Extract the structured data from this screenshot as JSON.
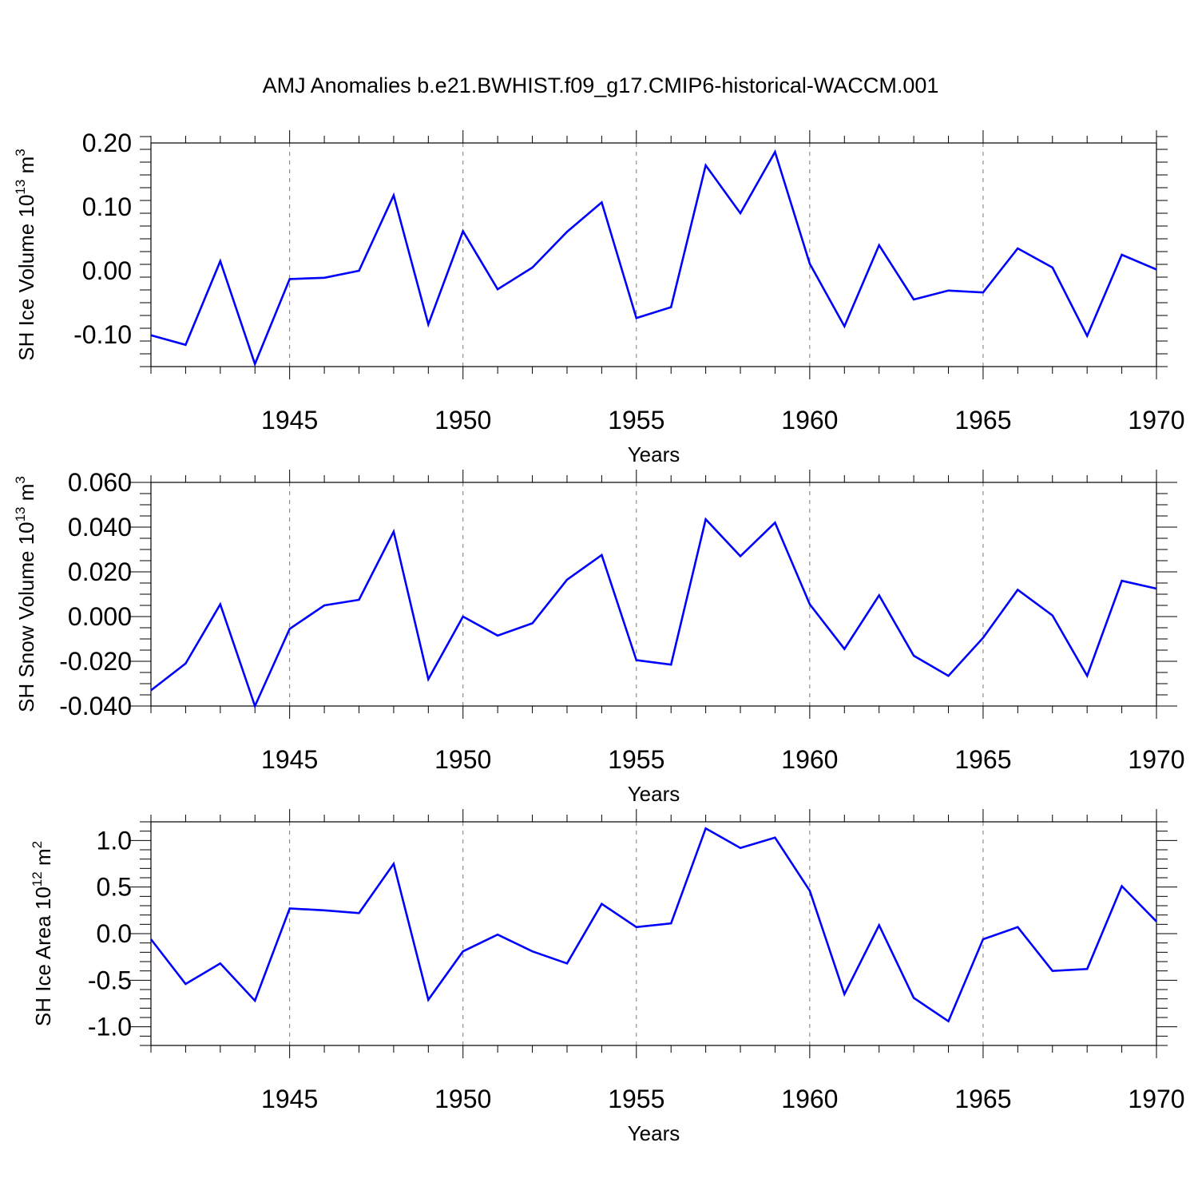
{
  "title": "AMJ Anomalies b.e21.BWHIST.f09_g17.CMIP6-historical-WACCM.001",
  "line_color": "#0000ff",
  "chart_data": [
    {
      "type": "line",
      "xlabel": "Years",
      "ylabel": {
        "base": "SH Ice Volume 10",
        "exp": "13",
        "unit": " m",
        "unit_exp": "3"
      },
      "xlim": [
        1941,
        1970
      ],
      "ylim": [
        -0.15,
        0.2
      ],
      "yticks": [
        -0.1,
        0.0,
        0.1,
        0.2
      ],
      "ytick_labels": [
        "-0.10",
        "0.00",
        "0.10",
        "0.20"
      ],
      "yminor_step": 0.02,
      "xticks": [
        1945,
        1950,
        1955,
        1960,
        1965,
        1970
      ],
      "xtick_labels": [
        "1945",
        "1950",
        "1955",
        "1960",
        "1965",
        "1970"
      ],
      "grid": "dashed vertical at major x ticks",
      "x": [
        1941,
        1942,
        1943,
        1944,
        1945,
        1946,
        1947,
        1948,
        1949,
        1950,
        1951,
        1952,
        1953,
        1954,
        1955,
        1956,
        1957,
        1958,
        1959,
        1960,
        1961,
        1962,
        1963,
        1964,
        1965,
        1966,
        1967,
        1968,
        1969,
        1970
      ],
      "values": [
        -0.101,
        -0.116,
        0.015,
        -0.146,
        -0.013,
        -0.011,
        0.0,
        0.118,
        -0.084,
        0.062,
        -0.029,
        0.005,
        0.061,
        0.107,
        -0.074,
        -0.057,
        0.165,
        0.09,
        0.186,
        0.011,
        -0.087,
        0.04,
        -0.045,
        -0.031,
        -0.034,
        0.035,
        0.005,
        -0.102,
        0.025,
        0.002
      ]
    },
    {
      "type": "line",
      "xlabel": "Years",
      "ylabel": {
        "base": "SH Snow Volume 10",
        "exp": "13",
        "unit": " m",
        "unit_exp": "3"
      },
      "xlim": [
        1941,
        1970
      ],
      "ylim": [
        -0.04,
        0.06
      ],
      "yticks": [
        -0.04,
        -0.02,
        0.0,
        0.02,
        0.04,
        0.06
      ],
      "ytick_labels": [
        "-0.040",
        "-0.020",
        "0.000",
        "0.020",
        "0.040",
        "0.060"
      ],
      "yminor_step": 0.005,
      "xticks": [
        1945,
        1950,
        1955,
        1960,
        1965,
        1970
      ],
      "xtick_labels": [
        "1945",
        "1950",
        "1955",
        "1960",
        "1965",
        "1970"
      ],
      "grid": "dashed vertical at major x ticks",
      "x": [
        1941,
        1942,
        1943,
        1944,
        1945,
        1946,
        1947,
        1948,
        1949,
        1950,
        1951,
        1952,
        1953,
        1954,
        1955,
        1956,
        1957,
        1958,
        1959,
        1960,
        1961,
        1962,
        1963,
        1964,
        1965,
        1966,
        1967,
        1968,
        1969,
        1970
      ],
      "values": [
        -0.033,
        -0.021,
        0.0055,
        -0.04,
        -0.0055,
        0.005,
        0.0075,
        0.038,
        -0.028,
        0.0,
        -0.0085,
        -0.003,
        0.0165,
        0.0275,
        -0.0195,
        -0.0215,
        0.0435,
        0.027,
        0.042,
        0.0055,
        -0.0145,
        0.0095,
        -0.0175,
        -0.0265,
        -0.0095,
        0.012,
        0.0005,
        -0.0265,
        0.016,
        0.0125
      ]
    },
    {
      "type": "line",
      "xlabel": "Years",
      "ylabel": {
        "base": "SH Ice Area 10",
        "exp": "12",
        "unit": " m",
        "unit_exp": "2"
      },
      "xlim": [
        1941,
        1970
      ],
      "ylim": [
        -1.2,
        1.2
      ],
      "yticks": [
        -1.0,
        -0.5,
        0.0,
        0.5,
        1.0
      ],
      "ytick_labels": [
        "-1.0",
        "-0.5",
        "0.0",
        "0.5",
        "1.0"
      ],
      "yminor_step": 0.1,
      "xticks": [
        1945,
        1950,
        1955,
        1960,
        1965,
        1970
      ],
      "xtick_labels": [
        "1945",
        "1950",
        "1955",
        "1960",
        "1965",
        "1970"
      ],
      "grid": "dashed vertical at major x ticks",
      "x": [
        1941,
        1942,
        1943,
        1944,
        1945,
        1946,
        1947,
        1948,
        1949,
        1950,
        1951,
        1952,
        1953,
        1954,
        1955,
        1956,
        1957,
        1958,
        1959,
        1960,
        1961,
        1962,
        1963,
        1964,
        1965,
        1966,
        1967,
        1968,
        1969,
        1970
      ],
      "values": [
        -0.06,
        -0.54,
        -0.32,
        -0.72,
        0.27,
        0.25,
        0.22,
        0.75,
        -0.71,
        -0.19,
        -0.01,
        -0.19,
        -0.32,
        0.32,
        0.07,
        0.11,
        1.13,
        0.92,
        1.03,
        0.46,
        -0.65,
        0.09,
        -0.69,
        -0.94,
        -0.06,
        0.07,
        -0.4,
        -0.38,
        0.51,
        0.13
      ]
    }
  ]
}
